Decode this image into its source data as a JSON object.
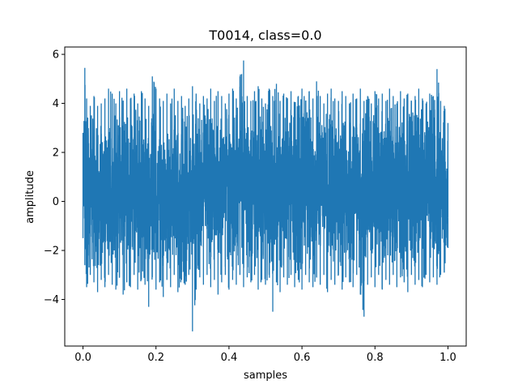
{
  "chart_data": {
    "type": "line",
    "title": "T0014, class=0.0",
    "xlabel": "samples",
    "ylabel": "amplitude",
    "xlim": [
      -0.05,
      1.05
    ],
    "ylim": [
      -5.9,
      6.3
    ],
    "xticks": [
      0.0,
      0.2,
      0.4,
      0.6,
      0.8,
      1.0
    ],
    "xtick_labels": [
      "0.0",
      "0.2",
      "0.4",
      "0.6",
      "0.8",
      "1.0"
    ],
    "yticks": [
      -4,
      -2,
      0,
      2,
      4,
      6
    ],
    "ytick_labels": [
      "−4",
      "−2",
      "0",
      "2",
      "4",
      "6"
    ],
    "grid": false,
    "legend": "none",
    "series": [
      {
        "color": "#1f77b4",
        "envelope": {
          "x": [
            0.0,
            0.005,
            0.01,
            0.02,
            0.03,
            0.04,
            0.05,
            0.06,
            0.07,
            0.08,
            0.09,
            0.1,
            0.11,
            0.12,
            0.13,
            0.14,
            0.15,
            0.16,
            0.17,
            0.18,
            0.19,
            0.2,
            0.21,
            0.22,
            0.23,
            0.24,
            0.25,
            0.26,
            0.27,
            0.28,
            0.29,
            0.3,
            0.31,
            0.32,
            0.33,
            0.34,
            0.35,
            0.36,
            0.37,
            0.38,
            0.39,
            0.4,
            0.41,
            0.42,
            0.43,
            0.44,
            0.45,
            0.46,
            0.47,
            0.48,
            0.49,
            0.5,
            0.51,
            0.52,
            0.53,
            0.54,
            0.55,
            0.56,
            0.57,
            0.58,
            0.59,
            0.6,
            0.61,
            0.62,
            0.63,
            0.64,
            0.65,
            0.66,
            0.67,
            0.68,
            0.69,
            0.7,
            0.71,
            0.72,
            0.73,
            0.74,
            0.75,
            0.76,
            0.77,
            0.78,
            0.79,
            0.8,
            0.81,
            0.82,
            0.83,
            0.84,
            0.85,
            0.86,
            0.87,
            0.88,
            0.89,
            0.9,
            0.91,
            0.92,
            0.93,
            0.94,
            0.95,
            0.96,
            0.97,
            0.98,
            0.99,
            1.0
          ],
          "upper": [
            2.8,
            5.45,
            4.2,
            3.9,
            4.3,
            3.9,
            4.0,
            4.2,
            4.6,
            4.4,
            4.0,
            4.5,
            4.1,
            4.6,
            4.2,
            4.4,
            4.0,
            4.5,
            4.2,
            3.9,
            5.1,
            4.6,
            4.2,
            4.1,
            4.4,
            4.0,
            4.6,
            4.1,
            4.3,
            3.9,
            4.2,
            4.7,
            4.4,
            4.0,
            4.3,
            4.2,
            4.6,
            4.1,
            4.5,
            4.3,
            4.0,
            4.4,
            4.6,
            4.2,
            5.1,
            5.75,
            4.3,
            4.1,
            4.5,
            4.7,
            4.2,
            4.0,
            4.6,
            4.3,
            4.8,
            4.1,
            4.4,
            4.2,
            4.5,
            4.0,
            4.3,
            4.6,
            4.1,
            4.5,
            4.2,
            4.9,
            4.3,
            4.0,
            4.4,
            4.6,
            4.2,
            4.1,
            4.5,
            4.3,
            4.0,
            4.4,
            4.2,
            4.6,
            4.1,
            4.3,
            4.0,
            4.5,
            4.2,
            4.4,
            4.1,
            4.6,
            4.3,
            4.0,
            4.5,
            4.2,
            4.4,
            4.1,
            4.3,
            4.6,
            4.2,
            4.0,
            4.4,
            4.3,
            5.4,
            4.1,
            3.9,
            3.2
          ],
          "lower": [
            -1.5,
            -2.6,
            -3.5,
            -3.0,
            -3.3,
            -3.7,
            -3.2,
            -3.5,
            -3.0,
            -3.4,
            -3.6,
            -3.1,
            -3.8,
            -3.3,
            -3.5,
            -3.0,
            -3.6,
            -3.2,
            -3.4,
            -4.3,
            -3.1,
            -3.6,
            -3.3,
            -3.9,
            -3.2,
            -3.5,
            -3.0,
            -3.7,
            -3.2,
            -3.4,
            -3.0,
            -5.3,
            -3.6,
            -3.1,
            -3.4,
            -3.0,
            -3.5,
            -3.2,
            -3.8,
            -3.3,
            -3.0,
            -3.6,
            -3.2,
            -3.4,
            -3.0,
            -3.5,
            -3.1,
            -3.3,
            -3.0,
            -3.6,
            -3.2,
            -3.4,
            -3.0,
            -4.5,
            -3.3,
            -3.7,
            -3.1,
            -3.4,
            -3.0,
            -3.5,
            -3.2,
            -3.6,
            -3.0,
            -3.3,
            -3.5,
            -3.1,
            -3.4,
            -3.0,
            -3.7,
            -3.2,
            -3.4,
            -3.0,
            -3.6,
            -3.1,
            -3.3,
            -3.5,
            -3.0,
            -3.8,
            -4.7,
            -3.4,
            -3.1,
            -3.5,
            -3.0,
            -3.6,
            -3.2,
            -3.4,
            -3.0,
            -3.5,
            -3.1,
            -3.3,
            -3.7,
            -3.0,
            -3.4,
            -3.2,
            -3.5,
            -3.0,
            -3.3,
            -3.1,
            -3.4,
            -3.0,
            -2.9,
            -1.9
          ]
        }
      }
    ]
  }
}
